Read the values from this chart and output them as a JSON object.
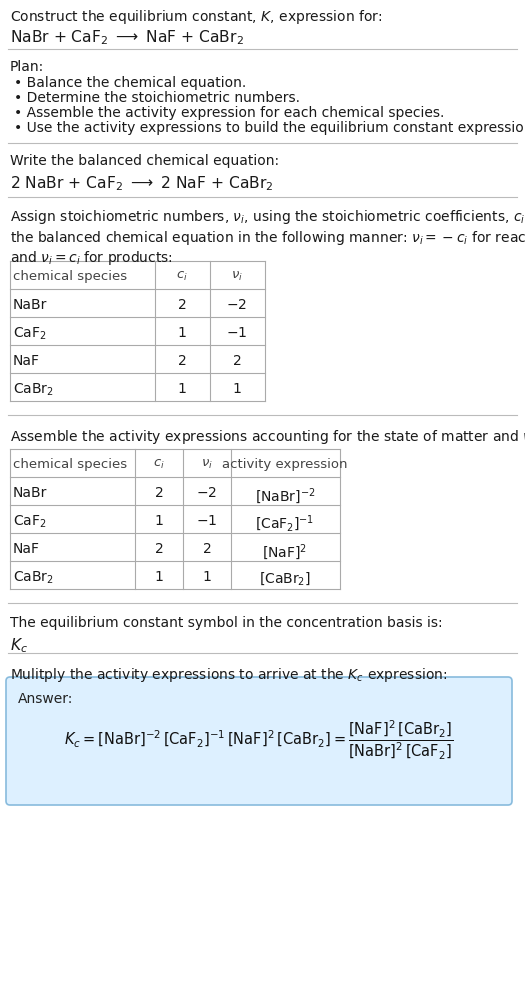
{
  "bg_color": "#ffffff",
  "text_color": "#1a1a1a",
  "title_line1": "Construct the equilibrium constant, $K$, expression for:",
  "title_line2": "NaBr + CaF$_2$ $\\longrightarrow$ NaF + CaBr$_2$",
  "plan_header": "Plan:",
  "plan_items": [
    "\\bullet  Balance the chemical equation.",
    "\\bullet  Determine the stoichiometric numbers.",
    "\\bullet  Assemble the activity expression for each chemical species.",
    "\\bullet  Use the activity expressions to build the equilibrium constant expression."
  ],
  "balanced_header": "Write the balanced chemical equation:",
  "balanced_eq": "2 NaBr + CaF$_2$ $\\longrightarrow$ 2 NaF + CaBr$_2$",
  "stoich_header": "Assign stoichiometric numbers, $\\nu_i$, using the stoichiometric coefficients, $c_i$, from\nthe balanced chemical equation in the following manner: $\\nu_i = -c_i$ for reactants\nand $\\nu_i = c_i$ for products:",
  "table1_data": [
    [
      "NaBr",
      "2",
      "$-2$"
    ],
    [
      "CaF$_2$",
      "1",
      "$-1$"
    ],
    [
      "NaF",
      "2",
      "2"
    ],
    [
      "CaBr$_2$",
      "1",
      "1"
    ]
  ],
  "activity_header": "Assemble the activity expressions accounting for the state of matter and $\\nu_i$:",
  "table2_data": [
    [
      "NaBr",
      "2",
      "$-2$",
      "[NaBr]$^{-2}$"
    ],
    [
      "CaF$_2$",
      "1",
      "$-1$",
      "[CaF$_2$]$^{-1}$"
    ],
    [
      "NaF",
      "2",
      "2",
      "[NaF]$^2$"
    ],
    [
      "CaBr$_2$",
      "1",
      "1",
      "[CaBr$_2$]"
    ]
  ],
  "kc_header": "The equilibrium constant symbol in the concentration basis is:",
  "kc_symbol": "$K_c$",
  "multiply_header": "Mulitply the activity expressions to arrive at the $K_c$ expression:",
  "answer_bg": "#ddf0ff",
  "answer_border": "#88bbdd",
  "answer_label": "Answer:"
}
